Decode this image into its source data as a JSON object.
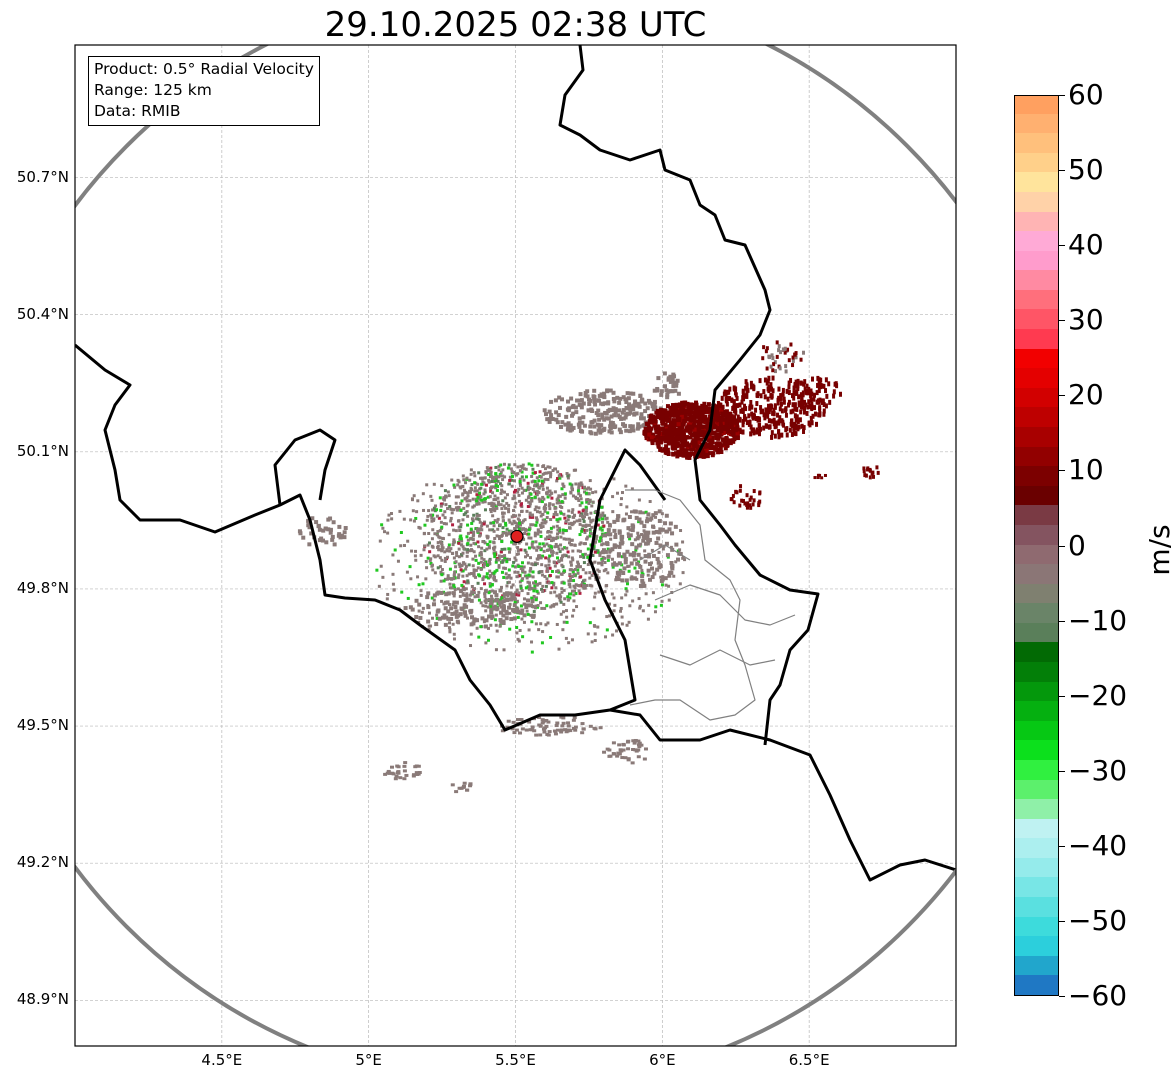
{
  "title": "29.10.2025 02:38 UTC",
  "info": {
    "product": "Product: 0.5° Radial Velocity",
    "range": "Range: 125 km",
    "source": "Data: RMIB"
  },
  "map_extent": {
    "lon_min": 4.0,
    "lon_max": 7.0,
    "lat_min": 48.8,
    "lat_max": 50.99
  },
  "x_ticks": [
    "4.5°E",
    "5°E",
    "5.5°E",
    "6°E",
    "6.5°E"
  ],
  "x_tick_values": [
    4.5,
    5.0,
    5.5,
    6.0,
    6.5
  ],
  "y_ticks": [
    "50.7°N",
    "50.4°N",
    "50.1°N",
    "49.8°N",
    "49.5°N",
    "49.2°N",
    "48.9°N"
  ],
  "y_tick_values": [
    50.7,
    50.4,
    50.1,
    49.8,
    49.5,
    49.2,
    48.9
  ],
  "radar_site": {
    "lon": 5.505,
    "lat": 49.915,
    "range_km": 125,
    "marker_color": "#e02020"
  },
  "colorbar": {
    "unit": "m/s",
    "vmin": -60,
    "vmax": 60,
    "tick_values": [
      60,
      50,
      40,
      30,
      20,
      10,
      0,
      -10,
      -20,
      -30,
      -40,
      -50,
      -60
    ],
    "tick_labels": [
      "60",
      "50",
      "40",
      "30",
      "20",
      "10",
      "0",
      "−10",
      "−20",
      "−30",
      "−40",
      "−50",
      "−60"
    ],
    "colors_bottom_to_top": [
      "#1f78c4",
      "#21a6cc",
      "#2ccfdc",
      "#3ddbdc",
      "#5ae0e0",
      "#78e6e6",
      "#95ebeb",
      "#acefef",
      "#bff2f2",
      "#8ff0a8",
      "#5cf06c",
      "#30f040",
      "#0ce01c",
      "#06c814",
      "#05b010",
      "#04980c",
      "#037f08",
      "#026a04",
      "#5a7f5a",
      "#6a8468",
      "#7f8070",
      "#8b7676",
      "#8f6a70",
      "#845460",
      "#7a3a44",
      "#6a0000",
      "#7c0000",
      "#920000",
      "#a80000",
      "#be0000",
      "#d20000",
      "#e40000",
      "#f20000",
      "#ff3a50",
      "#ff5566",
      "#ff6f7c",
      "#ff8aa2",
      "#ff9ccc",
      "#ffaad6",
      "#ffb4b4",
      "#ffd2a8",
      "#ffe49c",
      "#ffd08a",
      "#ffc07c",
      "#ffb070",
      "#ffa060"
    ]
  },
  "colors": {
    "border": "#000000",
    "region_border": "#808080",
    "range_ring": "#808080",
    "grid": "#b8b8b8",
    "clutter": "#8a7a78",
    "inbound_green": "#20c820",
    "outbound_red": "#780000"
  }
}
